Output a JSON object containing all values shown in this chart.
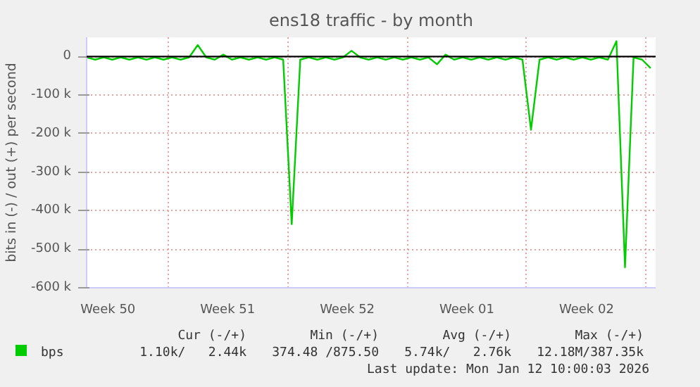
{
  "chart_data": {
    "type": "line",
    "title": "ens18 traffic - by month",
    "ylabel": "bits in (-) / out (+) per second",
    "x": [
      "2025-12-10T06:00",
      "2025-12-10T18:00",
      "2025-12-11T06:00",
      "2025-12-11T18:00",
      "2025-12-12T06:00",
      "2025-12-12T18:00",
      "2025-12-13T06:00",
      "2025-12-13T18:00",
      "2025-12-14T06:00",
      "2025-12-14T18:00",
      "2025-12-15T06:00",
      "2025-12-15T18:00",
      "2025-12-16T06:00",
      "2025-12-16T18:00",
      "2025-12-17T06:00",
      "2025-12-17T18:00",
      "2025-12-18T06:00",
      "2025-12-18T18:00",
      "2025-12-19T06:00",
      "2025-12-19T18:00",
      "2025-12-20T06:00",
      "2025-12-20T18:00",
      "2025-12-21T06:00",
      "2025-12-21T18:00",
      "2025-12-22T06:00",
      "2025-12-22T18:00",
      "2025-12-23T06:00",
      "2025-12-23T18:00",
      "2025-12-24T06:00",
      "2025-12-24T18:00",
      "2025-12-25T06:00",
      "2025-12-25T18:00",
      "2025-12-26T06:00",
      "2025-12-26T18:00",
      "2025-12-27T06:00",
      "2025-12-27T18:00",
      "2025-12-28T06:00",
      "2025-12-28T18:00",
      "2025-12-29T06:00",
      "2025-12-29T18:00",
      "2025-12-30T06:00",
      "2025-12-30T18:00",
      "2025-12-31T06:00",
      "2025-12-31T18:00",
      "2026-01-01T06:00",
      "2026-01-01T18:00",
      "2026-01-02T06:00",
      "2026-01-02T18:00",
      "2026-01-03T06:00",
      "2026-01-03T18:00",
      "2026-01-04T06:00",
      "2026-01-04T18:00",
      "2026-01-05T06:00",
      "2026-01-05T18:00",
      "2026-01-06T06:00",
      "2026-01-06T18:00",
      "2026-01-07T06:00",
      "2026-01-07T18:00",
      "2026-01-08T06:00",
      "2026-01-08T18:00",
      "2026-01-09T06:00",
      "2026-01-09T18:00",
      "2026-01-10T06:00",
      "2026-01-10T18:00",
      "2026-01-11T06:00",
      "2026-01-11T18:00",
      "2026-01-12T06:00"
    ],
    "series": [
      {
        "name": "bps",
        "color": "#00cc00",
        "values": [
          -2000,
          -8000,
          -2000,
          -8000,
          -2000,
          -8000,
          -2000,
          -8000,
          -2000,
          -8000,
          -2000,
          -8000,
          -2000,
          30000,
          -2000,
          -8000,
          5000,
          -8000,
          -2000,
          -8000,
          -2000,
          -8000,
          -2000,
          -8000,
          -435000,
          -8000,
          -2000,
          -8000,
          -2000,
          -8000,
          -2000,
          15000,
          -2000,
          -8000,
          -2000,
          -8000,
          -2000,
          -8000,
          -2000,
          -8000,
          -2000,
          -20000,
          5000,
          -8000,
          -2000,
          -8000,
          -2000,
          -8000,
          -2000,
          -8000,
          -2000,
          -8000,
          -190000,
          -8000,
          -2000,
          -8000,
          -2000,
          -8000,
          -2000,
          -8000,
          -2000,
          -8000,
          40000,
          -547000,
          -2000,
          -8000,
          -30000
        ]
      }
    ],
    "xticks": [
      {
        "value": "2025-12-11T12:00",
        "label": "Week 50"
      },
      {
        "value": "2025-12-15",
        "label": null
      },
      {
        "value": "2025-12-18T12:00",
        "label": "Week 51"
      },
      {
        "value": "2025-12-22",
        "label": null
      },
      {
        "value": "2025-12-25T12:00",
        "label": "Week 52"
      },
      {
        "value": "2025-12-29",
        "label": null
      },
      {
        "value": "2026-01-01T12:00",
        "label": "Week 01"
      },
      {
        "value": "2026-01-05",
        "label": null
      },
      {
        "value": "2026-01-08T12:00",
        "label": "Week 02"
      },
      {
        "value": "2026-01-12",
        "label": null
      }
    ],
    "xlim": [
      "2025-12-10T06:00",
      "2026-01-12T13:00"
    ],
    "ylim": [
      -600000,
      50000
    ],
    "yticks": [
      {
        "value": 0,
        "label": "0"
      },
      {
        "value": -100000,
        "label": "-100 k"
      },
      {
        "value": -200000,
        "label": "-200 k"
      },
      {
        "value": -300000,
        "label": "-300 k"
      },
      {
        "value": -400000,
        "label": "-400 k"
      },
      {
        "value": -500000,
        "label": "-500 k"
      },
      {
        "value": -600000,
        "label": "-600 k"
      }
    ],
    "ref_lines": [
      {
        "axis": "y",
        "value": 0,
        "color": "#000000"
      }
    ],
    "grid": true,
    "legend": "bottom left",
    "annotations": [
      "Cur (-/+)",
      "Min (-/+)",
      "Avg (-/+)",
      "Max (-/+)",
      "1.10k/   2.44k",
      "374.48 /875.50",
      "5.74k/   2.76k",
      "12.18M/387.35k",
      "Last update: Mon Jan 12 10:00:03 2026"
    ]
  }
}
